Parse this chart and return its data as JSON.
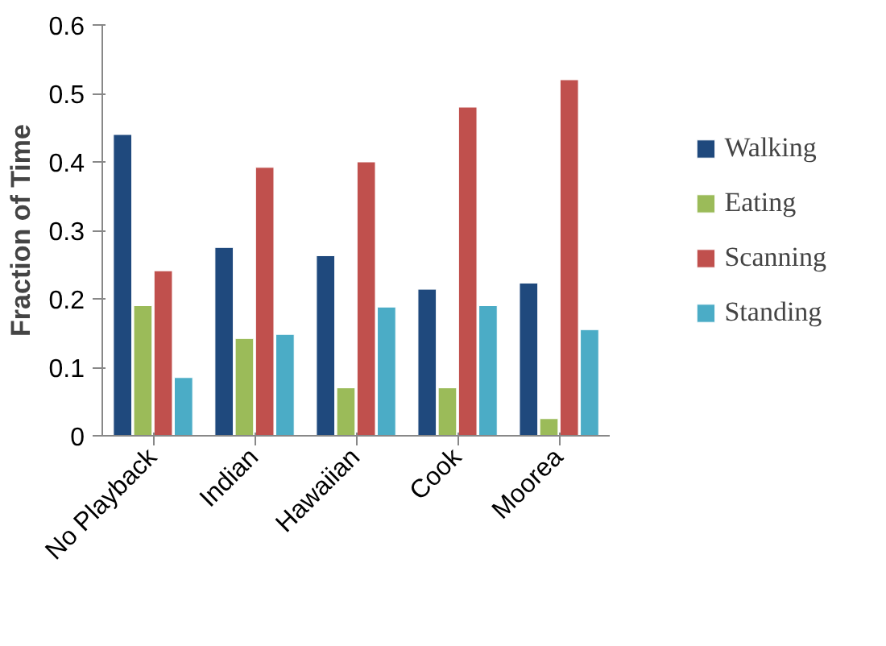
{
  "chart_data": {
    "type": "bar",
    "ylabel": "Fraction of Time",
    "categories": [
      "No Playback",
      "Indian",
      "Hawaiian",
      "Cook",
      "Moorea"
    ],
    "series": [
      {
        "name": "Walking",
        "color": "#1f497d",
        "values": [
          0.44,
          0.275,
          0.263,
          0.214,
          0.223
        ]
      },
      {
        "name": "Eating",
        "color": "#9bbb59",
        "values": [
          0.19,
          0.142,
          0.07,
          0.07,
          0.025
        ]
      },
      {
        "name": "Scanning",
        "color": "#c0504d",
        "values": [
          0.241,
          0.392,
          0.4,
          0.48,
          0.52
        ]
      },
      {
        "name": "Standing",
        "color": "#4bacc6",
        "values": [
          0.085,
          0.148,
          0.188,
          0.19,
          0.155
        ]
      }
    ],
    "ylim": [
      0,
      0.6
    ],
    "yticks": [
      {
        "value": 0,
        "label": "0"
      },
      0.1,
      0.2,
      0.3,
      0.4,
      0.5,
      0.6
    ],
    "grid": false,
    "legend": "right"
  }
}
